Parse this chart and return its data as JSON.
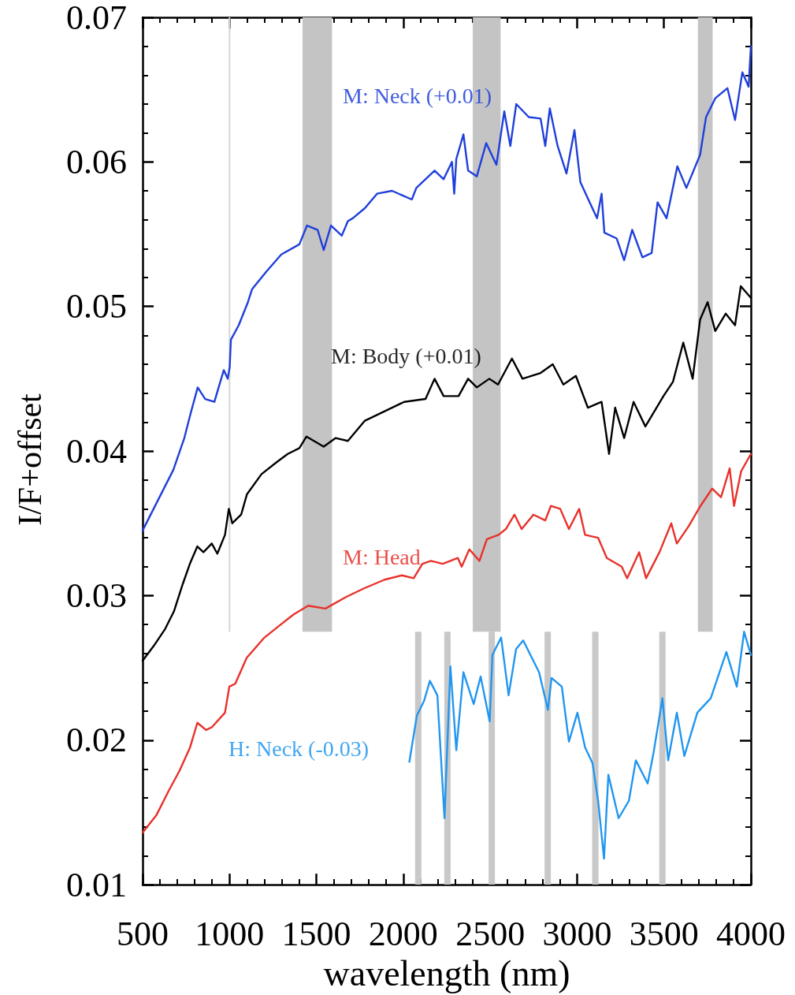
{
  "chart_data": {
    "type": "line",
    "xlabel": "wavelength (nm)",
    "ylabel": "I/F+offset",
    "xlim": [
      500,
      4000
    ],
    "xticks": [
      500,
      1000,
      1500,
      2000,
      2500,
      3000,
      3500,
      4000
    ],
    "ylim": [
      0.01,
      0.07
    ],
    "yticks": [
      0.01,
      0.02,
      0.03,
      0.04,
      0.05,
      0.06,
      0.07
    ],
    "grid": false,
    "legend": false,
    "marker": "none",
    "line_style": "solid",
    "bands": [
      {
        "axis": "x",
        "from": 995,
        "to": 1005,
        "color": "#d8d8d8"
      },
      {
        "axis": "x",
        "from": 1420,
        "to": 1590,
        "color": "#c4c4c4"
      },
      {
        "axis": "x",
        "from": 2400,
        "to": 2560,
        "color": "#c4c4c4"
      },
      {
        "axis": "x",
        "from": 3695,
        "to": 3780,
        "color": "#c4c4c4"
      }
    ],
    "ref_lines": [
      {
        "axis": "x",
        "value": 2086,
        "color": "#c8c8c8"
      },
      {
        "axis": "x",
        "value": 2254,
        "color": "#c8c8c8"
      },
      {
        "axis": "x",
        "value": 2509,
        "color": "#c8c8c8"
      },
      {
        "axis": "x",
        "value": 2831,
        "color": "#c8c8c8"
      },
      {
        "axis": "x",
        "value": 3105,
        "color": "#c8c8c8"
      },
      {
        "axis": "x",
        "value": 3491,
        "color": "#c8c8c8"
      }
    ],
    "series": [
      {
        "name": "M: Neck (+0.01)",
        "color": "#1f3fdb",
        "x": [
          500,
          677,
          740,
          774,
          817,
          860,
          913,
          967,
          990,
          1001,
          1008,
          1053,
          1106,
          1130,
          1211,
          1298,
          1402,
          1446,
          1507,
          1542,
          1584,
          1646,
          1681,
          1709,
          1779,
          1849,
          1935,
          2049,
          2075,
          2180,
          2232,
          2280,
          2293,
          2305,
          2346,
          2373,
          2423,
          2477,
          2536,
          2581,
          2616,
          2650,
          2722,
          2790,
          2817,
          2843,
          2888,
          2939,
          2985,
          3019,
          3080,
          3115,
          3141,
          3157,
          3228,
          3271,
          3317,
          3376,
          3429,
          3463,
          3515,
          3577,
          3629,
          3708,
          3742,
          3795,
          3865,
          3909,
          3951,
          3987,
          4000
        ],
        "values": [
          0.0345,
          0.0387,
          0.0409,
          0.0425,
          0.0444,
          0.0436,
          0.0434,
          0.0456,
          0.045,
          0.0458,
          0.0477,
          0.0487,
          0.0503,
          0.0512,
          0.0524,
          0.0536,
          0.0543,
          0.0556,
          0.0553,
          0.0539,
          0.0556,
          0.0549,
          0.0559,
          0.0561,
          0.0568,
          0.0578,
          0.058,
          0.0574,
          0.0582,
          0.0594,
          0.0588,
          0.06,
          0.0578,
          0.0602,
          0.0619,
          0.0594,
          0.059,
          0.0613,
          0.0598,
          0.0635,
          0.0611,
          0.064,
          0.0631,
          0.063,
          0.0611,
          0.0637,
          0.0611,
          0.0592,
          0.0622,
          0.0586,
          0.057,
          0.0561,
          0.0578,
          0.0551,
          0.0547,
          0.0532,
          0.0553,
          0.0534,
          0.0537,
          0.0572,
          0.0561,
          0.0597,
          0.0582,
          0.0605,
          0.0631,
          0.0644,
          0.0651,
          0.0629,
          0.0662,
          0.0652,
          0.068
        ]
      },
      {
        "name": "M: Body (+0.01)",
        "color": "#000000",
        "x": [
          500,
          563,
          630,
          680,
          731,
          772,
          815,
          850,
          898,
          930,
          974,
          996,
          1016,
          1067,
          1100,
          1184,
          1268,
          1335,
          1402,
          1443,
          1542,
          1611,
          1681,
          1779,
          1883,
          2005,
          2128,
          2180,
          2232,
          2318,
          2373,
          2423,
          2495,
          2545,
          2625,
          2686,
          2790,
          2860,
          2921,
          2993,
          3062,
          3141,
          3184,
          3219,
          3271,
          3325,
          3393,
          3497,
          3552,
          3611,
          3665,
          3708,
          3751,
          3795,
          3855,
          3909,
          3942,
          4000
        ],
        "values": [
          0.0255,
          0.0265,
          0.0277,
          0.0289,
          0.0308,
          0.0322,
          0.0334,
          0.033,
          0.0336,
          0.0329,
          0.0342,
          0.036,
          0.035,
          0.0356,
          0.037,
          0.0384,
          0.0392,
          0.0398,
          0.0402,
          0.041,
          0.0403,
          0.0409,
          0.0407,
          0.0421,
          0.0427,
          0.0434,
          0.0436,
          0.045,
          0.0438,
          0.0438,
          0.045,
          0.0444,
          0.045,
          0.0446,
          0.0464,
          0.045,
          0.0454,
          0.046,
          0.0446,
          0.0452,
          0.043,
          0.0434,
          0.0398,
          0.043,
          0.0409,
          0.0434,
          0.0417,
          0.0438,
          0.0448,
          0.0475,
          0.045,
          0.0491,
          0.0503,
          0.0483,
          0.0495,
          0.0487,
          0.0514,
          0.0506
        ]
      },
      {
        "name": "M: Head",
        "color": "#e8312a",
        "x": [
          500,
          579,
          646,
          713,
          773,
          815,
          865,
          899,
          974,
          999,
          1033,
          1099,
          1201,
          1285,
          1369,
          1453,
          1552,
          1670,
          1774,
          1892,
          1992,
          2060,
          2110,
          2159,
          2227,
          2314,
          2336,
          2380,
          2438,
          2481,
          2548,
          2590,
          2640,
          2681,
          2749,
          2817,
          2849,
          2903,
          2953,
          3012,
          3046,
          3121,
          3171,
          3257,
          3288,
          3357,
          3397,
          3474,
          3542,
          3574,
          3642,
          3710,
          3777,
          3828,
          3878,
          3903,
          3944,
          4000
        ],
        "values": [
          0.0136,
          0.0148,
          0.0164,
          0.0179,
          0.0195,
          0.0212,
          0.0207,
          0.0209,
          0.0219,
          0.0237,
          0.0239,
          0.0257,
          0.0271,
          0.0279,
          0.0287,
          0.0293,
          0.0291,
          0.0299,
          0.0305,
          0.0311,
          0.0314,
          0.0312,
          0.0322,
          0.0324,
          0.0322,
          0.0326,
          0.032,
          0.0332,
          0.0324,
          0.0339,
          0.0342,
          0.0346,
          0.0356,
          0.0346,
          0.0356,
          0.0352,
          0.0362,
          0.036,
          0.0346,
          0.036,
          0.0342,
          0.034,
          0.0326,
          0.032,
          0.0312,
          0.033,
          0.0312,
          0.033,
          0.035,
          0.0336,
          0.0348,
          0.0362,
          0.0374,
          0.0368,
          0.0388,
          0.0362,
          0.0386,
          0.0398
        ]
      },
      {
        "name": "H: Neck (-0.03)",
        "color": "#2196f0",
        "x": [
          2035,
          2078,
          2119,
          2153,
          2196,
          2237,
          2271,
          2305,
          2346,
          2405,
          2445,
          2497,
          2513,
          2563,
          2606,
          2649,
          2690,
          2731,
          2781,
          2832,
          2853,
          2912,
          2953,
          3002,
          3046,
          3089,
          3121,
          3155,
          3180,
          3239,
          3298,
          3338,
          3406,
          3441,
          3491,
          3524,
          3574,
          3617,
          3692,
          3769,
          3859,
          3919,
          3961,
          4000
        ],
        "values": [
          0.0185,
          0.0217,
          0.0227,
          0.0241,
          0.0231,
          0.0146,
          0.0251,
          0.0193,
          0.0247,
          0.0225,
          0.0244,
          0.0213,
          0.0259,
          0.0271,
          0.0231,
          0.0263,
          0.0269,
          0.0259,
          0.0247,
          0.0221,
          0.0243,
          0.0237,
          0.0199,
          0.0219,
          0.0195,
          0.0184,
          0.0158,
          0.0118,
          0.0176,
          0.0146,
          0.0158,
          0.0186,
          0.017,
          0.0192,
          0.0229,
          0.0186,
          0.0219,
          0.0189,
          0.0219,
          0.0229,
          0.0261,
          0.0237,
          0.0275,
          0.0259
        ]
      }
    ]
  }
}
